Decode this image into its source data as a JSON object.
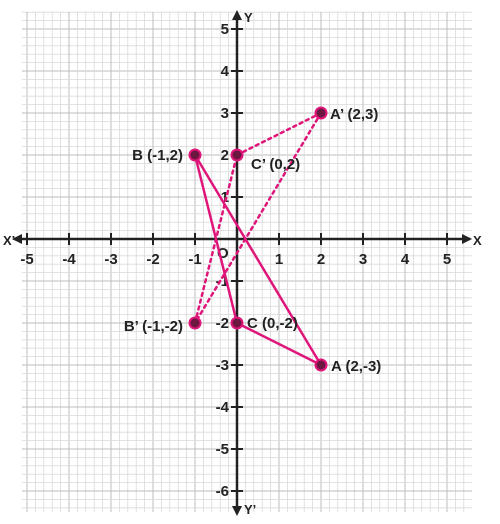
{
  "axes": {
    "x_pos_label": "X",
    "x_neg_label": "X’",
    "y_pos_label": "Y",
    "y_neg_label": "Y’",
    "origin_label": "O",
    "x_ticks": [
      -5,
      -4,
      -3,
      -2,
      -1,
      1,
      2,
      3,
      4,
      5
    ],
    "y_ticks": [
      5,
      4,
      3,
      2,
      1,
      -1,
      -2,
      -3,
      -4,
      -5,
      -6
    ],
    "x_tick_labels": [
      "-5",
      "-4",
      "-3",
      "-2",
      "-1",
      "1",
      "2",
      "3",
      "4",
      "5"
    ],
    "y_tick_labels": [
      "5",
      "4",
      "3",
      "2",
      "1",
      "-1",
      "-2",
      "-3",
      "-4",
      "-5",
      "-6"
    ]
  },
  "colors": {
    "triangle": "#e0157a",
    "grid_minor": "#d9d9d9",
    "grid_major": "#bdbdbd",
    "axis": "#222222",
    "point_fill": "#6b1740"
  },
  "points": [
    {
      "id": "A",
      "x": 2,
      "y": -3,
      "label": "A (2,-3)"
    },
    {
      "id": "B",
      "x": -1,
      "y": 2,
      "label": "B (-1,2)"
    },
    {
      "id": "C",
      "x": 0,
      "y": -2,
      "label": "C (0,-2)"
    },
    {
      "id": "A1",
      "x": 2,
      "y": 3,
      "label": "A’ (2,3)"
    },
    {
      "id": "B1",
      "x": -1,
      "y": -2,
      "label": "B’ (-1,-2)"
    },
    {
      "id": "C1",
      "x": 0,
      "y": 2,
      "label": "C’ (0,2)"
    }
  ],
  "triangles": [
    {
      "name": "ABC",
      "vertices": [
        "A",
        "B",
        "C"
      ],
      "style": "solid"
    },
    {
      "name": "A’B’C’",
      "vertices": [
        "A1",
        "B1",
        "C1"
      ],
      "style": "dotted"
    }
  ]
}
